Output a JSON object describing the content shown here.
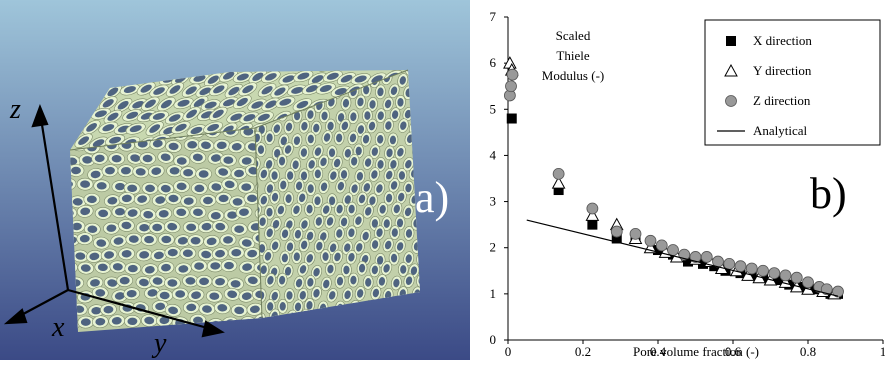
{
  "panel_a": {
    "panel_label": "a)",
    "axis_labels": {
      "x": "x",
      "y": "y",
      "z": "z"
    }
  },
  "panel_b": {
    "panel_label": "b)",
    "annotation_lines": [
      "Scaled",
      "Thiele",
      "Modulus (-)"
    ]
  },
  "colors": {
    "background_top": "#9fc5da",
    "background_bottom": "#3b4a86",
    "fiber_face": "#e7f3d2",
    "fiber_core": "#4f6480",
    "marker_grey": "#999999"
  },
  "chart_data": {
    "type": "scatter",
    "title": "",
    "xlabel": "Pore volume fraction (-)",
    "ylabel": "",
    "xlim": [
      0,
      1
    ],
    "ylim": [
      0,
      7
    ],
    "x_ticks": [
      "0",
      "0.2",
      "0.4",
      "0.6",
      "0.8",
      "1"
    ],
    "y_ticks": [
      "0",
      "1",
      "2",
      "3",
      "4",
      "5",
      "6",
      "7"
    ],
    "grid": false,
    "legend_position": "top-right",
    "series": [
      {
        "name": "X direction",
        "marker": "filled-square",
        "color": "#000000",
        "x": [
          0.01,
          0.135,
          0.225,
          0.29,
          0.34,
          0.4,
          0.44,
          0.48,
          0.52,
          0.55,
          0.58,
          0.62,
          0.65,
          0.68,
          0.72,
          0.75,
          0.78,
          0.82,
          0.86,
          0.88
        ],
        "y": [
          4.8,
          3.25,
          2.5,
          2.2,
          2.2,
          1.95,
          1.85,
          1.7,
          1.65,
          1.6,
          1.5,
          1.45,
          1.4,
          1.35,
          1.3,
          1.2,
          1.15,
          1.1,
          1.0,
          1.0
        ]
      },
      {
        "name": "Y direction",
        "marker": "open-triangle",
        "color": "#000000",
        "x": [
          0.005,
          0.01,
          0.135,
          0.225,
          0.29,
          0.34,
          0.38,
          0.42,
          0.45,
          0.5,
          0.54,
          0.57,
          0.61,
          0.64,
          0.67,
          0.7,
          0.74,
          0.77,
          0.8,
          0.84,
          0.87
        ],
        "y": [
          6.0,
          5.85,
          3.4,
          2.7,
          2.5,
          2.2,
          2.0,
          1.9,
          1.8,
          1.75,
          1.7,
          1.55,
          1.5,
          1.4,
          1.35,
          1.3,
          1.25,
          1.15,
          1.1,
          1.05,
          1.0
        ]
      },
      {
        "name": "Z direction",
        "marker": "grey-circle",
        "color": "#999999",
        "x": [
          0.005,
          0.008,
          0.012,
          0.135,
          0.225,
          0.29,
          0.34,
          0.38,
          0.41,
          0.44,
          0.47,
          0.5,
          0.53,
          0.56,
          0.59,
          0.62,
          0.65,
          0.68,
          0.71,
          0.74,
          0.77,
          0.8,
          0.83,
          0.85,
          0.88
        ],
        "y": [
          5.3,
          5.5,
          5.75,
          3.6,
          2.85,
          2.35,
          2.3,
          2.15,
          2.05,
          1.95,
          1.85,
          1.8,
          1.8,
          1.7,
          1.65,
          1.6,
          1.55,
          1.5,
          1.45,
          1.4,
          1.35,
          1.25,
          1.15,
          1.1,
          1.05
        ]
      },
      {
        "name": "Analytical",
        "marker": "line",
        "color": "#000000",
        "x": [
          0.05,
          0.88
        ],
        "y": [
          2.6,
          0.95
        ]
      }
    ]
  }
}
